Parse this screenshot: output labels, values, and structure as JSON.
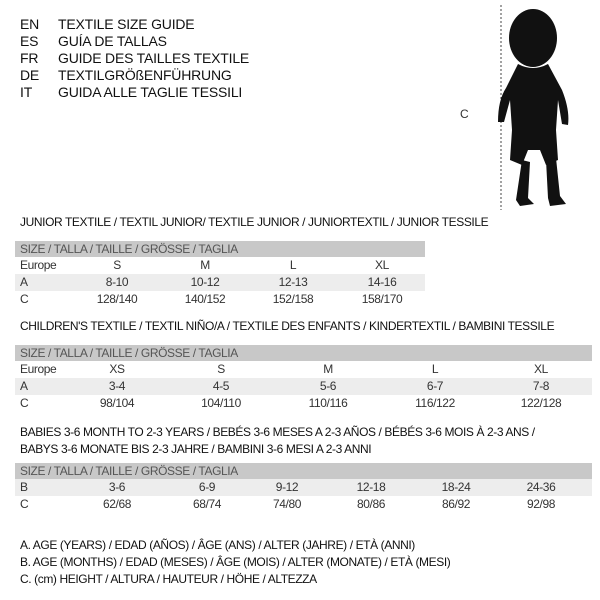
{
  "languages": [
    {
      "code": "EN",
      "text": "TEXTILE SIZE GUIDE"
    },
    {
      "code": "ES",
      "text": "GUÍA DE TALLAS"
    },
    {
      "code": "FR",
      "text": "GUIDE DES TAILLES TEXTILE"
    },
    {
      "code": "DE",
      "text": "TEXTILGRÖßENFÜHRUNG"
    },
    {
      "code": "IT",
      "text": "GUIDA ALLE TAGLIE TESSILI"
    }
  ],
  "figure": {
    "label": "C",
    "icon": "baby-silhouette"
  },
  "size_header": "SIZE / TALLA / TAILLE / GRÖSSE / TAGLIA",
  "junior": {
    "title": "JUNIOR TEXTILE / TEXTIL JUNIOR/ TEXTILE JUNIOR / JUNIORTEXTIL / JUNIOR TESSILE",
    "rows": [
      {
        "label": "Europe",
        "values": [
          "S",
          "M",
          "L",
          "XL"
        ]
      },
      {
        "label": "A",
        "values": [
          "8-10",
          "10-12",
          "12-13",
          "14-16"
        ]
      },
      {
        "label": "C",
        "values": [
          "128/140",
          "140/152",
          "152/158",
          "158/170"
        ]
      }
    ]
  },
  "children": {
    "title": "CHILDREN'S TEXTILE / TEXTIL NIÑO/A / TEXTILE DES ENFANTS / KINDERTEXTIL / BAMBINI TESSILE",
    "rows": [
      {
        "label": "Europe",
        "values": [
          "XS",
          "S",
          "M",
          "L",
          "XL"
        ]
      },
      {
        "label": "A",
        "values": [
          "3-4",
          "4-5",
          "5-6",
          "6-7",
          "7-8"
        ]
      },
      {
        "label": "C",
        "values": [
          "98/104",
          "104/110",
          "110/116",
          "116/122",
          "122/128"
        ]
      }
    ]
  },
  "babies": {
    "title_line1": "BABIES 3-6 MONTH TO 2-3 YEARS / BEBÉS 3-6 MESES A 2-3 AÑOS / BÉBÉS 3-6 MOIS À 2-3 ANS /",
    "title_line2": "BABYS 3-6 MONATE BIS 2-3 JAHRE / BAMBINI 3-6 MESI A 2-3 ANNI",
    "rows": [
      {
        "label": "B",
        "values": [
          "3-6",
          "6-9",
          "9-12",
          "12-18",
          "18-24",
          "24-36"
        ]
      },
      {
        "label": "C",
        "values": [
          "62/68",
          "68/74",
          "74/80",
          "80/86",
          "86/92",
          "92/98"
        ]
      }
    ]
  },
  "legend": [
    "A. AGE (YEARS) / EDAD (AÑOS) / ÂGE (ANS) / ALTER (JAHRE) / ETÀ (ANNI)",
    "B. AGE (MONTHS) / EDAD (MESES) / ÂGE (MOIS) / ALTER (MONATE) / ETÀ (MESI)",
    "C. (cm) HEIGHT / ALTURA / HAUTEUR / HÖHE / ALTEZZA"
  ]
}
